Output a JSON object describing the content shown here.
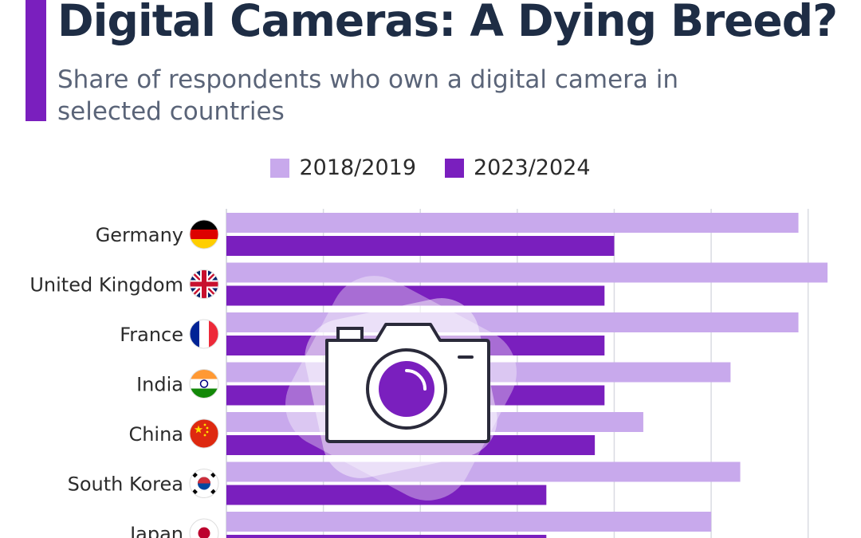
{
  "colors": {
    "accent": "#7a1fbe",
    "series_2018": "#c8a9ec",
    "series_2023": "#7a1fbe",
    "title": "#1e2d45",
    "subtitle": "#5a6478",
    "grid": "#d9dbe2",
    "label": "#2b2b2b"
  },
  "chart_data": {
    "type": "bar",
    "orientation": "horizontal",
    "title": "Digital Cameras: A Dying Breed?",
    "subtitle": "Share of respondents who own a digital camera in selected countries",
    "categories": [
      "Germany",
      "United Kingdom",
      "France",
      "India",
      "China",
      "South Korea",
      "Japan"
    ],
    "series": [
      {
        "name": "2018/2019",
        "values": [
          59,
          62,
          59,
          52,
          43,
          53,
          50
        ]
      },
      {
        "name": "2023/2024",
        "values": [
          40,
          39,
          39,
          39,
          38,
          33,
          33
        ]
      }
    ],
    "xlim": [
      0,
      60
    ],
    "grid": true,
    "legend_position": "top-center",
    "flag_icons": [
      "germany-flag-icon",
      "uk-flag-icon",
      "france-flag-icon",
      "india-flag-icon",
      "china-flag-icon",
      "south-korea-flag-icon",
      "japan-flag-icon"
    ],
    "illustration": "camera-icon"
  }
}
